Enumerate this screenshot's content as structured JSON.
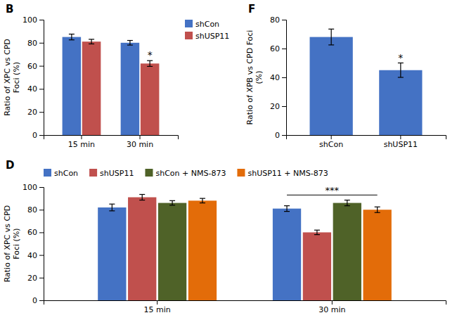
{
  "chart_data": [
    {
      "type": "bar",
      "title": "B",
      "categories": [
        "15 min",
        "30 min"
      ],
      "series": [
        {
          "name": "shCon",
          "color": "#4472C4",
          "values": [
            85,
            80
          ],
          "errors": [
            2.5,
            2.0
          ]
        },
        {
          "name": "shUSP11",
          "color": "#C0504D",
          "values": [
            81,
            62
          ],
          "errors": [
            2.0,
            2.5
          ]
        }
      ],
      "ylabel": "Ratio of XPC vs CPD\nFoci (%)",
      "ylim": [
        0,
        100
      ],
      "yticks": [
        0,
        20,
        40,
        60,
        80,
        100
      ],
      "legend": "upper right",
      "grid": false,
      "annotations": [
        {
          "text": "*",
          "category": "30 min",
          "series": "shUSP11"
        }
      ]
    },
    {
      "type": "bar",
      "title": "F",
      "categories": [
        "shCon",
        "shUSP11"
      ],
      "values": [
        68,
        45
      ],
      "errors": [
        5.5,
        5.0
      ],
      "color": "#4472C4",
      "ylabel": "Ratio of XPB vs CPD Foci\n(%)",
      "ylim": [
        0,
        80
      ],
      "yticks": [
        0,
        20,
        40,
        60,
        80
      ],
      "grid": false,
      "annotations": [
        {
          "text": "*",
          "category": "shUSP11"
        }
      ]
    },
    {
      "type": "bar",
      "title": "D",
      "categories": [
        "15 min",
        "30 min"
      ],
      "series": [
        {
          "name": "shCon",
          "color": "#4472C4",
          "values": [
            82,
            81
          ],
          "errors": [
            3.0,
            2.5
          ]
        },
        {
          "name": "shUSP11",
          "color": "#C0504D",
          "values": [
            91,
            60
          ],
          "errors": [
            2.5,
            2.0
          ]
        },
        {
          "name": "shCon + NMS-873",
          "color": "#4F6228",
          "values": [
            86,
            86
          ],
          "errors": [
            2.0,
            2.5
          ]
        },
        {
          "name": "shUSP11 + NMS-873",
          "color": "#E36C09",
          "values": [
            88,
            80
          ],
          "errors": [
            2.0,
            2.5
          ]
        }
      ],
      "ylabel": "Ratio of XPC vs CPD\nFoci (%)",
      "ylim": [
        0,
        100
      ],
      "yticks": [
        0,
        20,
        40,
        60,
        80,
        100
      ],
      "legend": "top",
      "grid": false,
      "annotations": [
        {
          "text": "***",
          "category": "30 min",
          "y": 93
        }
      ]
    }
  ]
}
